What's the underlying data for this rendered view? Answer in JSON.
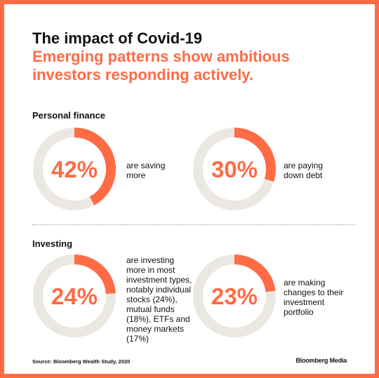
{
  "header": {
    "title": "The impact of Covid-19",
    "subtitle": "Emerging patterns show ambitious investors responding actively."
  },
  "sections": [
    {
      "label": "Personal finance"
    },
    {
      "label": "Investing"
    }
  ],
  "colors": {
    "accent": "#ff6b45",
    "track": "#ebe8e2",
    "text": "#111111"
  },
  "chart_data": [
    {
      "type": "pie",
      "value_percent": 42,
      "label": "42%",
      "description": "are saving more"
    },
    {
      "type": "pie",
      "value_percent": 30,
      "label": "30%",
      "description": "are paying down debt"
    },
    {
      "type": "pie",
      "value_percent": 24,
      "label": "24%",
      "description": "are investing more in most investment types, notably individual stocks (24%), mutual funds (18%), ETFs and money markets (17%)"
    },
    {
      "type": "pie",
      "value_percent": 23,
      "label": "23%",
      "description": "are making changes to their investment portfolio"
    }
  ],
  "footer": {
    "source": "Source: Bloomberg Wealth Study, 2020",
    "brand": "Bloomberg Media"
  }
}
